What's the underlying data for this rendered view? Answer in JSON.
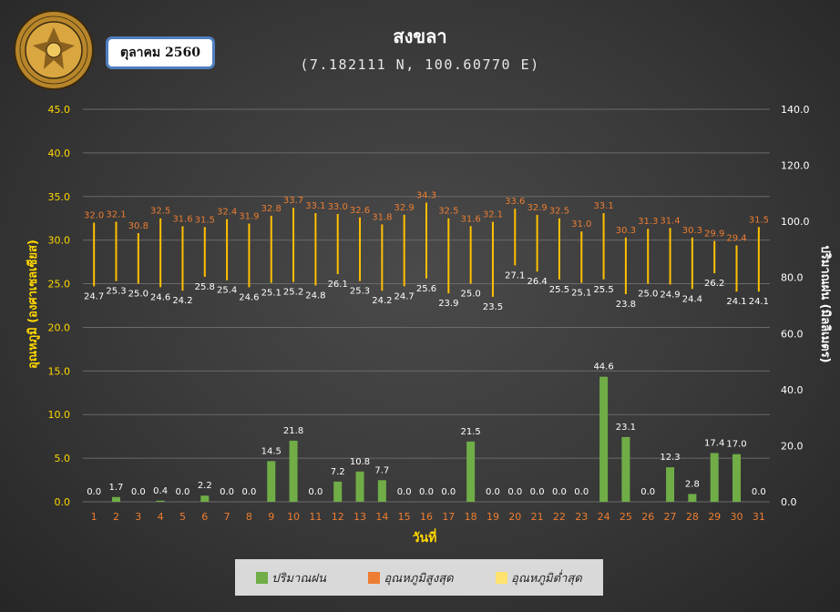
{
  "header": {
    "month_label": "ตุลาคม 2560",
    "title": "สงขลา",
    "subtitle": "(7.182111 N, 100.60770 E)",
    "logo_text": "กรมอุตุนิยมวิทยา METEOROLOGICAL DEPARTMENT"
  },
  "colors": {
    "rain": "#70ad47",
    "tmax_label": "#ed7d31",
    "tmin_label": "#ffffff",
    "range_line": "#ffc000",
    "left_axis": "#ffd700",
    "right_axis": "#ffffff",
    "x_tick": "#ed7d31",
    "grid": "#6a6a6a"
  },
  "legend": {
    "rain": "ปริมาณฝน",
    "tmax": "อุณหภูมิสูงสุด",
    "tmin": "อุณหภูมิต่ำสุด"
  },
  "chart_data": {
    "type": "bar",
    "title": "สงขลา",
    "subtitle": "(7.182111 N, 100.60770 E)",
    "xlabel": "วันที่",
    "ylabel_left": "อุณหภูมิ (องศาเซลเซียส)",
    "ylabel_right": "ปริมาณฝน (มิลลิเมตร)",
    "ylim_left": [
      0,
      45
    ],
    "yticks_left": [
      "0.0",
      "5.0",
      "10.0",
      "15.0",
      "20.0",
      "25.0",
      "30.0",
      "35.0",
      "40.0",
      "45.0"
    ],
    "ylim_right": [
      0,
      140
    ],
    "yticks_right": [
      "0.0",
      "20.0",
      "40.0",
      "60.0",
      "80.0",
      "100.0",
      "120.0",
      "140.0"
    ],
    "categories": [
      "1",
      "2",
      "3",
      "4",
      "5",
      "6",
      "7",
      "8",
      "9",
      "10",
      "11",
      "12",
      "13",
      "14",
      "15",
      "16",
      "17",
      "18",
      "19",
      "20",
      "21",
      "22",
      "23",
      "24",
      "25",
      "26",
      "27",
      "28",
      "29",
      "30",
      "31"
    ],
    "series": [
      {
        "name": "ปริมาณฝน",
        "axis": "right",
        "kind": "bar",
        "values": [
          0.0,
          1.7,
          0.0,
          0.4,
          0.0,
          2.2,
          0.0,
          0.0,
          14.5,
          21.8,
          0.0,
          7.2,
          10.8,
          7.7,
          0.0,
          0.0,
          0.0,
          21.5,
          0.0,
          0.0,
          0.0,
          0.0,
          0.0,
          44.6,
          23.1,
          0.0,
          12.3,
          2.8,
          17.4,
          17.0,
          0.0
        ]
      },
      {
        "name": "อุณหภูมิสูงสุด",
        "axis": "left",
        "kind": "range_high",
        "values": [
          32.0,
          32.1,
          30.8,
          32.5,
          31.6,
          31.5,
          32.4,
          31.9,
          32.8,
          33.7,
          33.1,
          33.0,
          32.6,
          31.8,
          32.9,
          34.3,
          32.5,
          31.6,
          32.1,
          33.6,
          32.9,
          32.5,
          31.0,
          33.1,
          30.3,
          31.3,
          31.4,
          30.3,
          29.9,
          29.4,
          31.5
        ]
      },
      {
        "name": "อุณหภูมิต่ำสุด",
        "axis": "left",
        "kind": "range_low",
        "values": [
          24.7,
          25.3,
          25.0,
          24.6,
          24.2,
          25.8,
          25.4,
          24.6,
          25.1,
          25.2,
          24.8,
          26.1,
          25.3,
          24.2,
          24.7,
          25.6,
          23.9,
          25.0,
          23.5,
          27.1,
          26.4,
          25.5,
          25.1,
          25.5,
          23.8,
          25.0,
          24.9,
          24.4,
          26.2,
          24.1,
          24.1
        ]
      }
    ]
  }
}
